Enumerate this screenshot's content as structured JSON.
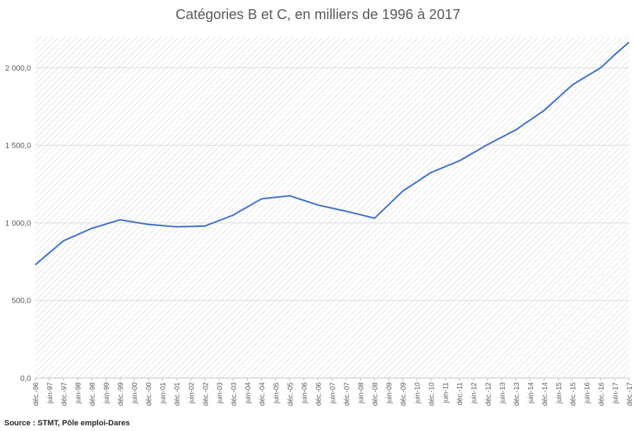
{
  "title": "Catégories B et C, en milliers de 1996 à 2017",
  "source": "Source : STMT, Pôle emploi-Dares",
  "colors": {
    "line": "#4472C4",
    "grid": "#d9d9d9",
    "hatch": "#d0d0d0",
    "text": "#595959"
  },
  "chart_data": {
    "type": "line",
    "title": "Catégories B et C, en milliers de 1996 à 2017",
    "xlabel": "",
    "ylabel": "",
    "ylim": [
      0,
      2200
    ],
    "yticks": [
      0,
      500,
      1000,
      1500,
      2000
    ],
    "ytick_labels": [
      "0,0",
      "500,0",
      "1 000,0",
      "1 500,0",
      "2 000,0"
    ],
    "grid": true,
    "categories": [
      "déc.-96",
      "juin-97",
      "déc.-97",
      "juin-98",
      "déc.-98",
      "juin-99",
      "déc.-99",
      "juin-00",
      "déc.-00",
      "juin-01",
      "déc.-01",
      "juin-02",
      "déc.-02",
      "juin-03",
      "déc.-03",
      "juin-04",
      "déc.-04",
      "juin-05",
      "déc.-05",
      "juin-06",
      "déc.-06",
      "juin-07",
      "déc.-07",
      "juin-08",
      "déc.-08",
      "juin-09",
      "déc.-09",
      "juin-10",
      "déc.-10",
      "juin-11",
      "déc.-11",
      "juin-12",
      "déc.-12",
      "juin-13",
      "déc.-13",
      "juin-14",
      "déc.-14",
      "juin-15",
      "déc.-15",
      "juin-16",
      "déc.-16",
      "juin-17",
      "déc.-17"
    ],
    "points": [
      {
        "x": "déc.-96",
        "y": 730
      },
      {
        "x": "déc.-97",
        "y": 885
      },
      {
        "x": "déc.-98",
        "y": 965
      },
      {
        "x": "déc.-99",
        "y": 1020
      },
      {
        "x": "déc.-00",
        "y": 990
      },
      {
        "x": "déc.-01",
        "y": 975
      },
      {
        "x": "déc.-02",
        "y": 980
      },
      {
        "x": "déc.-03",
        "y": 1050
      },
      {
        "x": "déc.-04",
        "y": 1155
      },
      {
        "x": "déc.-05",
        "y": 1175
      },
      {
        "x": "déc.-06",
        "y": 1115
      },
      {
        "x": "déc.-07",
        "y": 1075
      },
      {
        "x": "déc.-08",
        "y": 1030
      },
      {
        "x": "déc.-09",
        "y": 1205
      },
      {
        "x": "déc.-10",
        "y": 1325
      },
      {
        "x": "déc.-11",
        "y": 1400
      },
      {
        "x": "déc.-12",
        "y": 1505
      },
      {
        "x": "déc.-13",
        "y": 1600
      },
      {
        "x": "déc.-14",
        "y": 1725
      },
      {
        "x": "déc.-15",
        "y": 1890
      },
      {
        "x": "déc.-16",
        "y": 2000
      },
      {
        "x": "juin-17",
        "y": 2085
      },
      {
        "x": "déc.-17",
        "y": 2165
      }
    ]
  }
}
